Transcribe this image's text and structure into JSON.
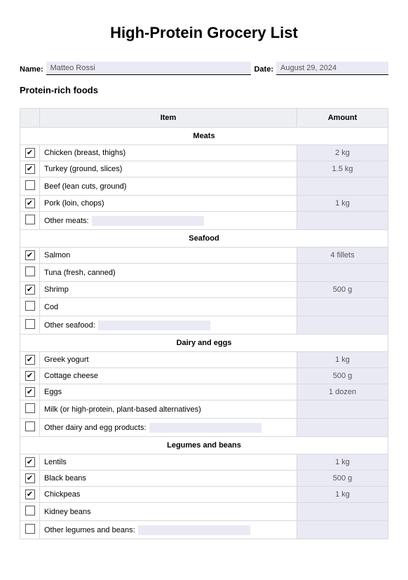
{
  "title": "High-Protein Grocery List",
  "name_label": "Name:",
  "name_value": "Matteo Rossi",
  "date_label": "Date:",
  "date_value": "August 29, 2024",
  "section_heading": "Protein-rich foods",
  "columns": {
    "item": "Item",
    "amount": "Amount"
  },
  "categories": [
    {
      "name": "Meats",
      "rows": [
        {
          "checked": true,
          "label": "Chicken (breast, thighs)",
          "amount": "2 kg",
          "other": false
        },
        {
          "checked": true,
          "label": "Turkey (ground, slices)",
          "amount": "1.5 kg",
          "other": false
        },
        {
          "checked": false,
          "label": "Beef (lean cuts, ground)",
          "amount": "",
          "other": false
        },
        {
          "checked": true,
          "label": "Pork (loin, chops)",
          "amount": "1 kg",
          "other": false
        },
        {
          "checked": false,
          "label": "Other meats:",
          "amount": "",
          "other": true
        }
      ]
    },
    {
      "name": "Seafood",
      "rows": [
        {
          "checked": true,
          "label": "Salmon",
          "amount": "4 fillets",
          "other": false
        },
        {
          "checked": false,
          "label": "Tuna (fresh, canned)",
          "amount": "",
          "other": false
        },
        {
          "checked": true,
          "label": "Shrimp",
          "amount": "500 g",
          "other": false
        },
        {
          "checked": false,
          "label": "Cod",
          "amount": "",
          "other": false
        },
        {
          "checked": false,
          "label": "Other seafood:",
          "amount": "",
          "other": true
        }
      ]
    },
    {
      "name": "Dairy and eggs",
      "rows": [
        {
          "checked": true,
          "label": "Greek yogurt",
          "amount": "1 kg",
          "other": false
        },
        {
          "checked": true,
          "label": "Cottage cheese",
          "amount": "500 g",
          "other": false
        },
        {
          "checked": true,
          "label": "Eggs",
          "amount": "1 dozen",
          "other": false
        },
        {
          "checked": false,
          "label": "Milk (or high-protein, plant-based alternatives)",
          "amount": "",
          "other": false
        },
        {
          "checked": false,
          "label": "Other dairy and egg products:",
          "amount": "",
          "other": true
        }
      ]
    },
    {
      "name": "Legumes and beans",
      "rows": [
        {
          "checked": true,
          "label": "Lentils",
          "amount": "1 kg",
          "other": false
        },
        {
          "checked": true,
          "label": "Black beans",
          "amount": "500 g",
          "other": false
        },
        {
          "checked": true,
          "label": "Chickpeas",
          "amount": "1 kg",
          "other": false
        },
        {
          "checked": false,
          "label": "Kidney beans",
          "amount": "",
          "other": false
        },
        {
          "checked": false,
          "label": "Other legumes and beans:",
          "amount": "",
          "other": true
        }
      ]
    }
  ]
}
